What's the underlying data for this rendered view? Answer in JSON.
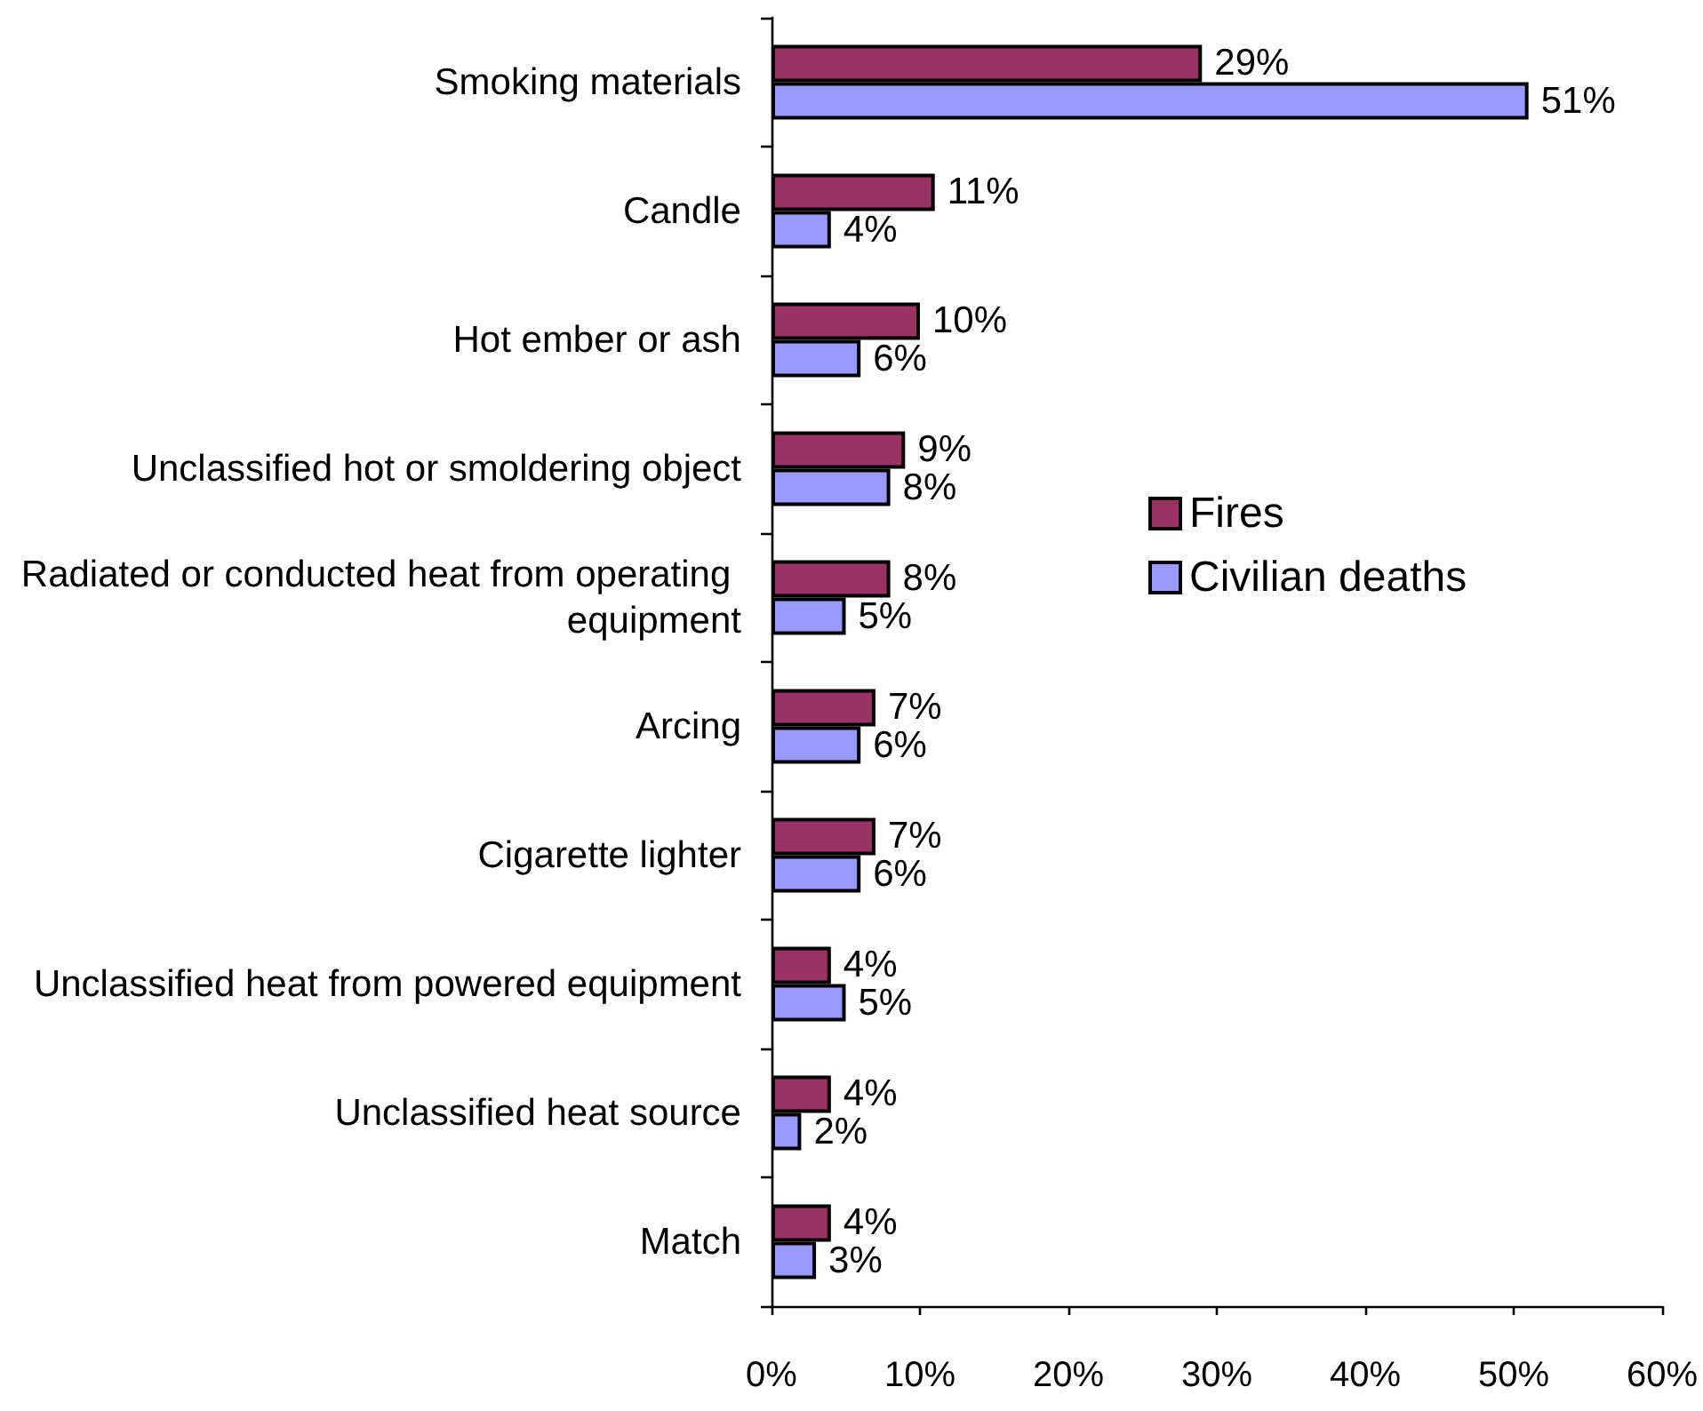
{
  "chart_data": {
    "type": "bar",
    "orientation": "horizontal",
    "categories": [
      "Smoking materials",
      "Candle",
      "Hot ember or ash",
      "Unclassified hot or smoldering object",
      "Radiated or conducted heat from operating equipment",
      "Arcing",
      "Cigarette lighter",
      "Unclassified heat from powered equipment",
      "Unclassified heat source",
      "Match"
    ],
    "series": [
      {
        "name": "Fires",
        "color": "#993366",
        "values": [
          29,
          11,
          10,
          9,
          8,
          7,
          7,
          4,
          4,
          4
        ],
        "value_labels": [
          "29%",
          "11%",
          "10%",
          "9%",
          "8%",
          "7%",
          "7%",
          "4%",
          "4%",
          "4%"
        ]
      },
      {
        "name": "Civilian deaths",
        "color": "#9999ff",
        "values": [
          51,
          4,
          6,
          8,
          5,
          6,
          6,
          5,
          2,
          3
        ],
        "value_labels": [
          "51%",
          "4%",
          "6%",
          "8%",
          "5%",
          "6%",
          "6%",
          "5%",
          "2%",
          "3%"
        ]
      }
    ],
    "xlim": [
      0,
      60
    ],
    "xticks": [
      {
        "value": 0,
        "label": "0%"
      },
      {
        "value": 10,
        "label": "10%"
      },
      {
        "value": 20,
        "label": "20%"
      },
      {
        "value": 30,
        "label": "30%"
      },
      {
        "value": 40,
        "label": "40%"
      },
      {
        "value": 50,
        "label": "50%"
      },
      {
        "value": 60,
        "label": "60%"
      }
    ],
    "grid": false,
    "legend": "right"
  }
}
